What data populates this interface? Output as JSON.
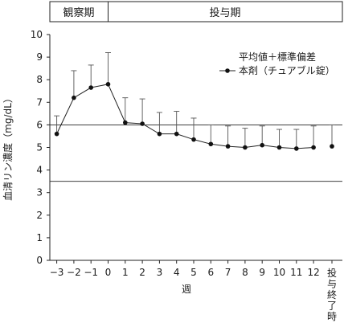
{
  "chart_data": {
    "type": "line",
    "phases": [
      {
        "label": "観察期",
        "x_from": -4,
        "x_to": 0
      },
      {
        "label": "投与期",
        "x_from": 0,
        "x_to": 14.8
      }
    ],
    "xlabel": "週",
    "ylabel": "血清リン濃度（mg/dL）",
    "ylim": [
      0,
      10
    ],
    "yticks": [
      "0",
      "1",
      "2",
      "3",
      "4",
      "5",
      "6",
      "7",
      "8",
      "9",
      "10"
    ],
    "xticks": [
      "−3",
      "−2",
      "−1",
      "0",
      "1",
      "2",
      "3",
      "4",
      "5",
      "6",
      "7",
      "8",
      "9",
      "10",
      "11",
      "12"
    ],
    "end_label": "投与終了時",
    "reference_lines": [
      6.0,
      3.5
    ],
    "legend": {
      "note": "平均値＋標準偏差",
      "series_label": "本剤（チュアブル錠）"
    },
    "series": [
      {
        "name": "本剤（チュアブル錠）",
        "points": [
          {
            "x": -3,
            "y": 5.6,
            "sd": 0.8
          },
          {
            "x": -2,
            "y": 7.2,
            "sd": 1.2
          },
          {
            "x": -1,
            "y": 7.65,
            "sd": 1.0
          },
          {
            "x": 0,
            "y": 7.8,
            "sd": 1.4
          },
          {
            "x": 1,
            "y": 6.1,
            "sd": 1.1
          },
          {
            "x": 2,
            "y": 6.05,
            "sd": 1.1
          },
          {
            "x": 3,
            "y": 5.6,
            "sd": 0.95
          },
          {
            "x": 4,
            "y": 5.6,
            "sd": 1.0
          },
          {
            "x": 5,
            "y": 5.35,
            "sd": 0.95
          },
          {
            "x": 6,
            "y": 5.15,
            "sd": 0.85
          },
          {
            "x": 7,
            "y": 5.05,
            "sd": 0.9
          },
          {
            "x": 8,
            "y": 5.0,
            "sd": 0.85
          },
          {
            "x": 9,
            "y": 5.1,
            "sd": 0.85
          },
          {
            "x": 10,
            "y": 5.0,
            "sd": 0.8
          },
          {
            "x": 11,
            "y": 4.95,
            "sd": 0.85
          },
          {
            "x": 12,
            "y": 5.0,
            "sd": 0.95
          }
        ],
        "end_point": {
          "y": 5.05,
          "sd": 0.95
        }
      }
    ]
  }
}
